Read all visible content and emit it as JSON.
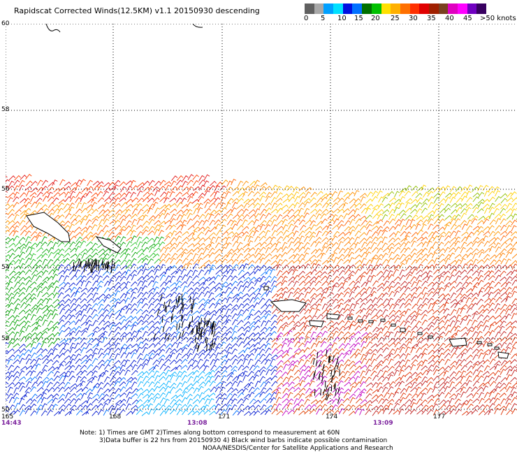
{
  "title": "Rapidscat Corrected Winds(12.5KM) v1.1 20150930 descending",
  "legend": {
    "colors": [
      "#606060",
      "#a8a8a8",
      "#00a0ff",
      "#00e0ff",
      "#0010e0",
      "#0070ff",
      "#007000",
      "#00c000",
      "#ffe000",
      "#ffb000",
      "#ff7000",
      "#ff3000",
      "#e00000",
      "#a02000",
      "#7a4020",
      "#e000c0",
      "#ff00ff",
      "#7000c0",
      "#380060"
    ],
    "labels": [
      "0",
      "5",
      "10",
      "15",
      "20",
      "25",
      "30",
      "35",
      "40",
      "45",
      ">50 knots"
    ]
  },
  "grid": {
    "latitudes": [
      "60",
      "58",
      "56",
      "54",
      "52",
      "50"
    ],
    "longitudes": [
      "165",
      "168",
      "171",
      "174",
      "177"
    ]
  },
  "times": [
    "14:43",
    "13:08",
    "13:09"
  ],
  "notes": {
    "line1": "Note: 1) Times are GMT 2)Times along bottom correspond to measurement at 60N",
    "line2": "3)Data buffer is 22 hrs from 20150930 4) Black wind barbs indicate possible contamination",
    "line3": "NOAA/NESDIS/Center for Satellite Applications and Research"
  }
}
